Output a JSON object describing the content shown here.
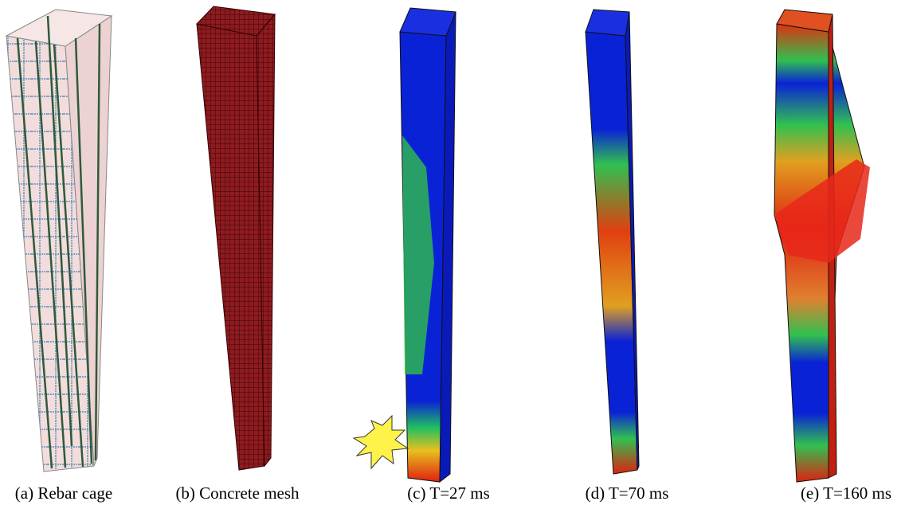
{
  "panels": [
    {
      "caption": "(a) Rebar cage"
    },
    {
      "caption": "(b) Concrete mesh"
    },
    {
      "caption": "(c) T=27 ms"
    },
    {
      "caption": "(d) T=70 ms"
    },
    {
      "caption": "(e) T=160 ms"
    }
  ]
}
